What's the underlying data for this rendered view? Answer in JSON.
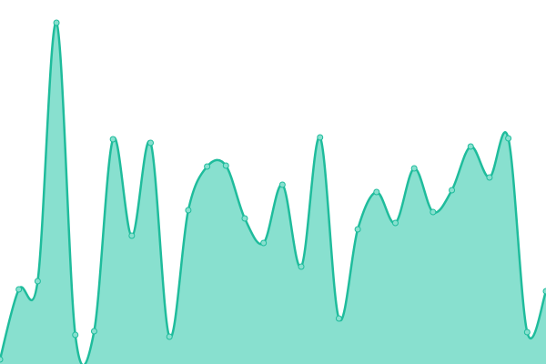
{
  "chart_data": {
    "type": "area",
    "color": "#1fbc9c",
    "fill": "#88e0cf",
    "values": [
      5,
      82,
      91,
      375,
      32,
      36,
      247,
      141,
      243,
      30,
      169,
      217,
      218,
      160,
      133,
      197,
      107,
      249,
      50,
      148,
      189,
      155,
      215,
      167,
      191,
      239,
      205,
      248,
      35,
      80
    ],
    "ylim": [
      0,
      400
    ]
  }
}
